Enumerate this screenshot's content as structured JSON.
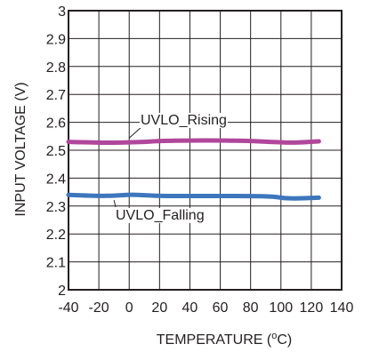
{
  "chart_data": {
    "type": "line",
    "title": "",
    "xlabel": "TEMPERATURE (",
    "xlabel_unit_sup": "o",
    "xlabel_unit_tail": "C)",
    "ylabel": "INPUT VOLTAGE (V)",
    "xlim": [
      -40,
      140
    ],
    "ylim": [
      2,
      3
    ],
    "x_ticks": [
      -40,
      -20,
      0,
      20,
      40,
      60,
      80,
      100,
      120,
      140
    ],
    "y_ticks": [
      2,
      2.1,
      2.2,
      2.3,
      2.4,
      2.5,
      2.6,
      2.7,
      2.8,
      2.9,
      3
    ],
    "x_tick_labels": [
      "-40",
      "-20",
      "0",
      "20",
      "40",
      "60",
      "80",
      "100",
      "120",
      "140"
    ],
    "y_tick_labels": [
      "2",
      "2.1",
      "2.2",
      "2.3",
      "2.4",
      "2.5",
      "2.6",
      "2.7",
      "2.8",
      "2.9",
      "3"
    ],
    "grid": true,
    "series": [
      {
        "name": "UVLO_Rising",
        "color": "#b0479b",
        "x": [
          -40,
          -20,
          -10,
          0,
          10,
          20,
          40,
          60,
          80,
          100,
          110,
          125
        ],
        "y": [
          2.53,
          2.527,
          2.527,
          2.528,
          2.53,
          2.533,
          2.535,
          2.535,
          2.533,
          2.528,
          2.527,
          2.532
        ]
      },
      {
        "name": "UVLO_Falling",
        "color": "#3d76bc",
        "x": [
          -40,
          -20,
          -10,
          0,
          10,
          20,
          40,
          60,
          80,
          95,
          105,
          125
        ],
        "y": [
          2.34,
          2.336,
          2.337,
          2.341,
          2.339,
          2.336,
          2.336,
          2.336,
          2.336,
          2.334,
          2.326,
          2.33
        ]
      }
    ],
    "annotations": [
      {
        "text": "UVLO_Rising",
        "series": 0,
        "at_x": 0
      },
      {
        "text": "UVLO_Falling",
        "series": 1,
        "at_x": -10
      }
    ]
  }
}
